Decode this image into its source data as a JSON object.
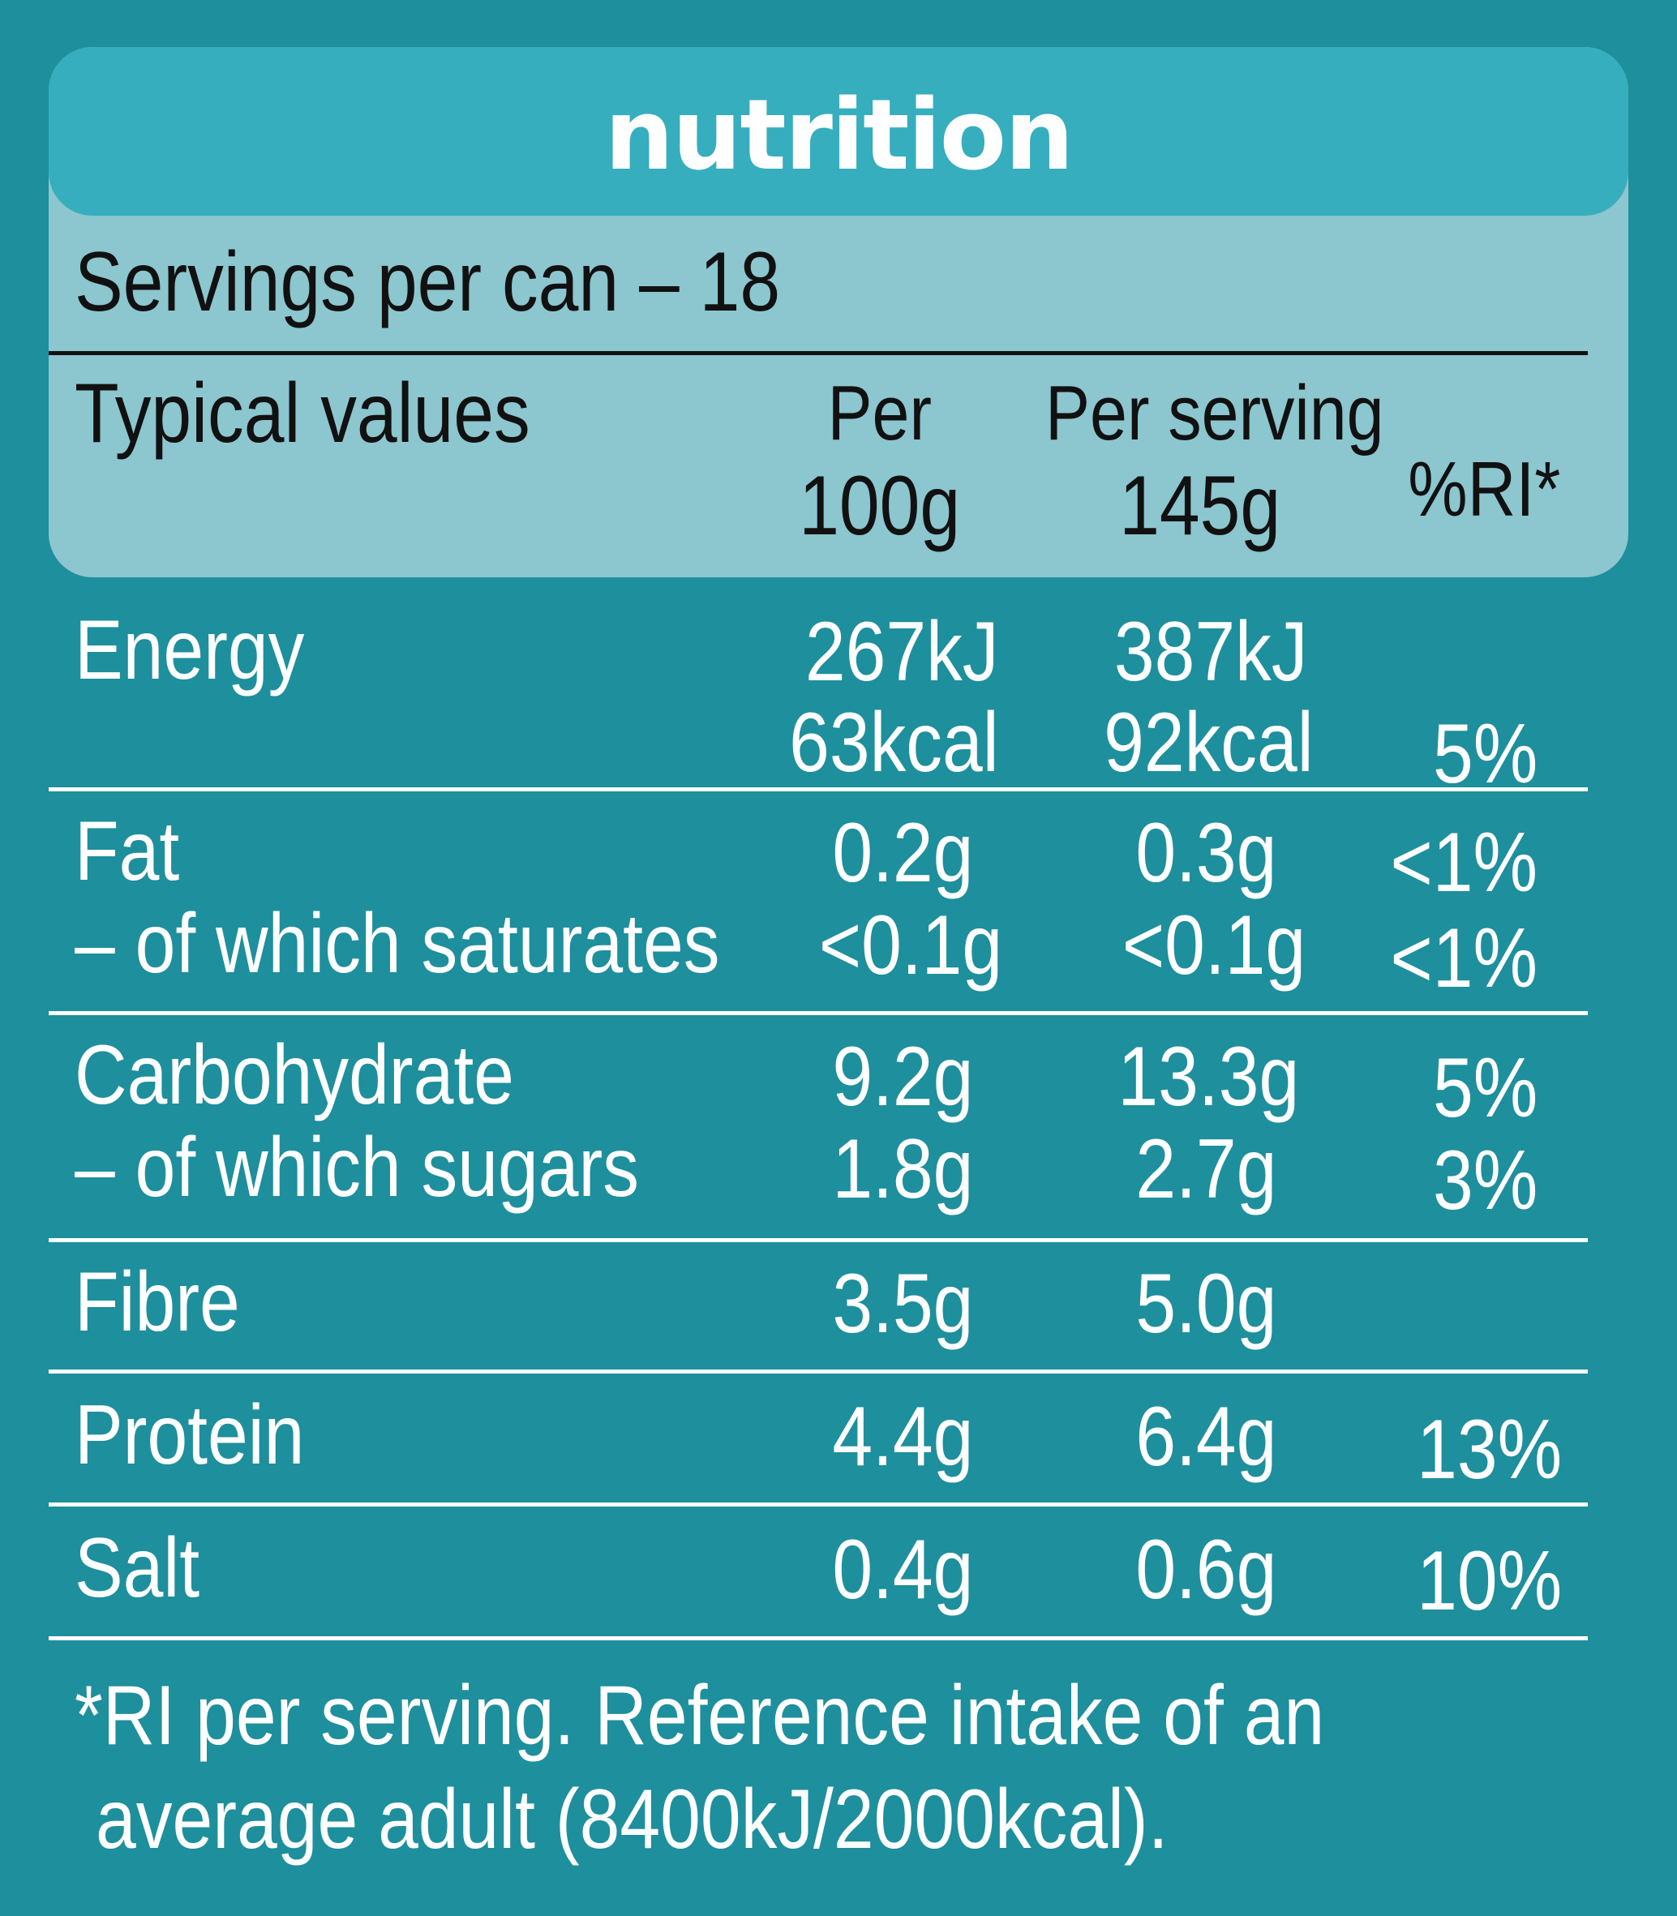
{
  "title": "nutrition",
  "servings": "Servings per can – 18",
  "header": {
    "typical": "Typical values",
    "per100_line1": "Per",
    "per100_line2": "100g",
    "perserving_line1": "Per serving",
    "perserving_line2": "145g",
    "ri": "%RI*"
  },
  "rows": {
    "energy": {
      "label": "Energy",
      "per100_kj": "267kJ",
      "per100_kcal": "63kcal",
      "perserving_kj": "387kJ",
      "perserving_kcal": "92kcal",
      "ri": "5%"
    },
    "fat": {
      "label": "Fat",
      "per100": "0.2g",
      "perserving": "0.3g",
      "ri": "<1%"
    },
    "saturates": {
      "label": "– of which saturates",
      "per100": "<0.1g",
      "perserving": "<0.1g",
      "ri": "<1%"
    },
    "carbohydrate": {
      "label": "Carbohydrate",
      "per100": "9.2g",
      "perserving": "13.3g",
      "ri": "5%"
    },
    "sugars": {
      "label": "– of which sugars",
      "per100": "1.8g",
      "perserving": "2.7g",
      "ri": "3%"
    },
    "fibre": {
      "label": "Fibre",
      "per100": "3.5g",
      "perserving": "5.0g"
    },
    "protein": {
      "label": "Protein",
      "per100": "4.4g",
      "perserving": "6.4g",
      "ri": "13%"
    },
    "salt": {
      "label": "Salt",
      "per100": "0.4g",
      "perserving": "0.6g",
      "ri": "10%"
    }
  },
  "footnote": {
    "line1": "*RI per serving. Reference intake of an",
    "line2": "average adult (8400kJ/2000kcal)."
  },
  "colors": {
    "background": "#1e8f9c",
    "panel": "#8cc6cf",
    "title_bar": "#36aebd",
    "text_dark": "#111111",
    "text_light": "#ffffff"
  }
}
